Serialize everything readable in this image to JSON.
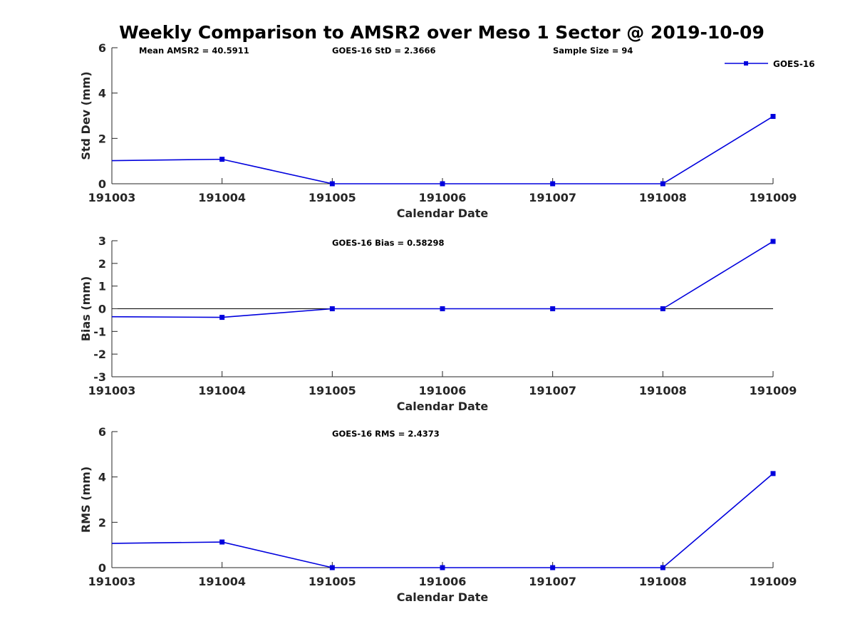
{
  "title": "Weekly Comparison to AMSR2 over Meso 1 Sector @ 2019-10-09",
  "legend": {
    "label": "GOES-16",
    "color": "#0000dd"
  },
  "chart_data": [
    {
      "type": "line",
      "categories": [
        "191003",
        "191004",
        "191005",
        "191006",
        "191007",
        "191008",
        "191009"
      ],
      "series": [
        {
          "name": "GOES-16",
          "values": [
            1.02,
            1.08,
            0.0,
            0.0,
            0.0,
            0.0,
            2.97
          ]
        }
      ],
      "xlabel": "Calendar Date",
      "ylabel": "Std Dev (mm)",
      "ylim": [
        0,
        6
      ],
      "yticks": [
        0,
        2,
        4,
        6
      ],
      "annotations": [
        "Mean AMSR2 = 40.5911",
        "GOES-16 StD = 2.3666",
        "Sample Size = 94"
      ],
      "first_point_marker": false,
      "zero_line": false
    },
    {
      "type": "line",
      "categories": [
        "191003",
        "191004",
        "191005",
        "191006",
        "191007",
        "191008",
        "191009"
      ],
      "series": [
        {
          "name": "GOES-16",
          "values": [
            -0.35,
            -0.38,
            0.0,
            0.0,
            0.0,
            0.0,
            2.97
          ]
        }
      ],
      "xlabel": "Calendar Date",
      "ylabel": "Bias (mm)",
      "ylim": [
        -3,
        3
      ],
      "yticks": [
        -3,
        -2,
        -1,
        0,
        1,
        2,
        3
      ],
      "annotations": [
        "GOES-16 Bias  = 0.58298"
      ],
      "first_point_marker": false,
      "zero_line": true
    },
    {
      "type": "line",
      "categories": [
        "191003",
        "191004",
        "191005",
        "191006",
        "191007",
        "191008",
        "191009"
      ],
      "series": [
        {
          "name": "GOES-16",
          "values": [
            1.07,
            1.13,
            0.0,
            0.0,
            0.0,
            0.0,
            4.15
          ]
        }
      ],
      "xlabel": "Calendar Date",
      "ylabel": "RMS (mm)",
      "ylim": [
        0,
        6
      ],
      "yticks": [
        0,
        2,
        4,
        6
      ],
      "annotations": [
        "GOES-16 RMS = 2.4373"
      ],
      "first_point_marker": false,
      "zero_line": false
    }
  ]
}
